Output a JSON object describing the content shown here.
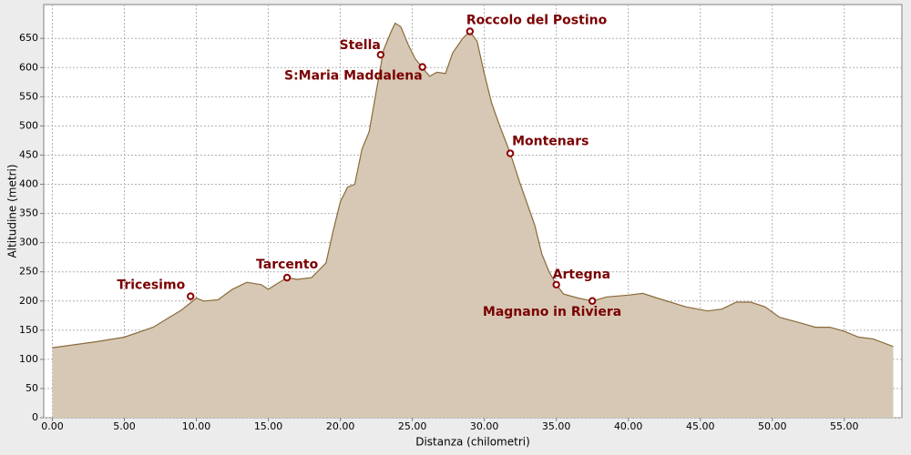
{
  "chart_data": {
    "type": "area",
    "x_label": "Distanza (chilometri)",
    "y_label": "Altitudine (metri)",
    "color": "#d6c8b4",
    "line_color": "#8a6a3a",
    "marker_color": "#8b0000",
    "grid": true,
    "xlim": [
      -0.6,
      59
    ],
    "ylim": [
      0,
      708
    ],
    "xticks": [
      {
        "value": 0,
        "label": "0.00"
      },
      {
        "value": 5,
        "label": "5.00"
      },
      {
        "value": 10,
        "label": "10.00"
      },
      {
        "value": 15,
        "label": "15.00"
      },
      {
        "value": 20,
        "label": "20.00"
      },
      {
        "value": 25,
        "label": "25.00"
      },
      {
        "value": 30,
        "label": "30.00"
      },
      {
        "value": 35,
        "label": "35.00"
      },
      {
        "value": 40,
        "label": "40.00"
      },
      {
        "value": 45,
        "label": "45.00"
      },
      {
        "value": 50,
        "label": "50.00"
      },
      {
        "value": 55,
        "label": "55.00"
      }
    ],
    "yticks": [
      0,
      50,
      100,
      150,
      200,
      250,
      300,
      350,
      400,
      450,
      500,
      550,
      600,
      650
    ],
    "x": [
      0,
      3,
      5,
      7,
      8,
      9,
      9.5,
      10,
      10.5,
      11.5,
      12.5,
      13.5,
      14.5,
      15,
      15.5,
      16.3,
      17,
      18,
      19,
      19.5,
      20,
      20.5,
      21,
      21.5,
      22,
      22.5,
      23,
      23.5,
      23.8,
      24.2,
      24.7,
      25.2,
      25.7,
      26.2,
      26.7,
      27.3,
      27.8,
      28.5,
      29,
      29.5,
      30,
      30.5,
      31,
      31.8,
      32.5,
      33.5,
      34,
      34.5,
      35,
      35.5,
      36.5,
      37.5,
      38.5,
      40,
      41,
      42,
      44,
      45.5,
      46.5,
      47.5,
      48.5,
      49.5,
      50.5,
      52,
      53,
      54,
      55,
      56,
      57,
      58.4
    ],
    "values": [
      120,
      130,
      138,
      155,
      170,
      185,
      195,
      205,
      200,
      202,
      220,
      232,
      228,
      220,
      228,
      240,
      237,
      240,
      265,
      320,
      370,
      395,
      400,
      460,
      490,
      560,
      630,
      660,
      676,
      670,
      640,
      615,
      600,
      585,
      592,
      590,
      625,
      650,
      662,
      645,
      590,
      540,
      505,
      453,
      400,
      330,
      280,
      250,
      228,
      212,
      205,
      200,
      207,
      210,
      213,
      205,
      190,
      183,
      186,
      198,
      198,
      190,
      172,
      162,
      155,
      155,
      148,
      138,
      135,
      122
    ],
    "annotations": [
      {
        "label": "Tricesimo",
        "x": 9.6,
        "y": 208
      },
      {
        "label": "Tarcento",
        "x": 16.3,
        "y": 240
      },
      {
        "label": "Stella",
        "x": 22.8,
        "y": 622
      },
      {
        "label": "S:Maria Maddalena",
        "x": 25.7,
        "y": 601
      },
      {
        "label": "Roccolo del Postino",
        "x": 29.0,
        "y": 662
      },
      {
        "label": "Montenars",
        "x": 31.8,
        "y": 453
      },
      {
        "label": "Artegna",
        "x": 35.0,
        "y": 228
      },
      {
        "label": "Magnano in Riviera",
        "x": 37.5,
        "y": 200
      }
    ]
  }
}
